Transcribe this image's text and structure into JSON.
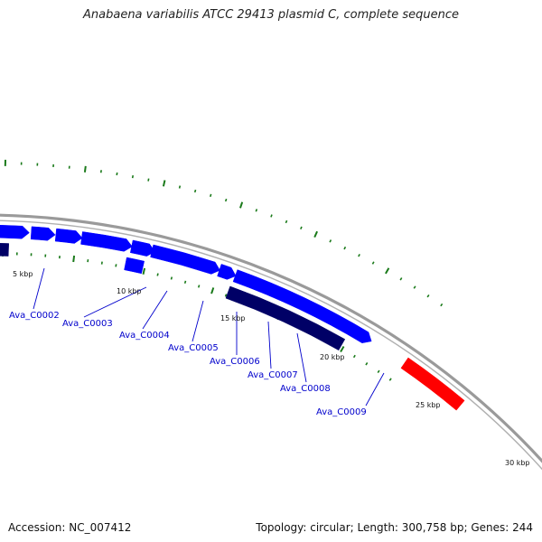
{
  "title": "Anabaena variabilis ATCC 29413 plasmid C, complete sequence",
  "footer": {
    "accession": "Accession: NC_007412",
    "summary": "Topology: circular; Length: 300,758 bp; Genes: 244"
  },
  "colors": {
    "backbone": "#8c8c8c",
    "forward_gene": "#0000ff",
    "reverse_gene": "#000066",
    "highlight_gene": "#ff0000",
    "tick": "#1a7a1a",
    "gene_label": "#0000cc"
  },
  "scale_labels": [
    "5 kbp",
    "10 kbp",
    "15 kbp",
    "20 kbp",
    "25 kbp",
    "30 kbp"
  ],
  "gene_labels": [
    "Ava_C0002",
    "Ava_C0003",
    "Ava_C0004",
    "Ava_C0005",
    "Ava_C0006",
    "Ava_C0007",
    "Ava_C0008",
    "Ava_C0009"
  ]
}
